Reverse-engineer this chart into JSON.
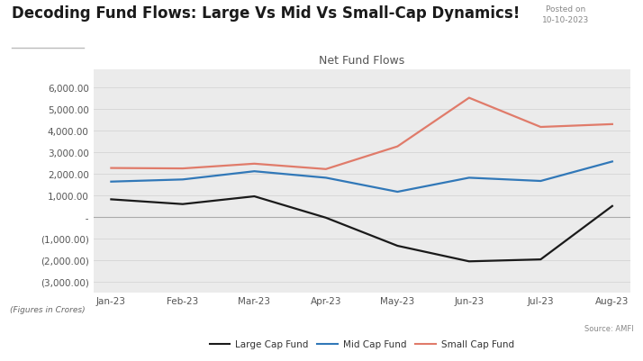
{
  "title": "Decoding Fund Flows: Large Vs Mid Vs Small-Cap Dynamics!",
  "posted_on": "Posted on\n10-10-2023",
  "chart_title": "Net Fund Flows",
  "source": "Source: AMFI",
  "footnote": "(Figures in Crores)",
  "months": [
    "Jan-23",
    "Feb-23",
    "Mar-23",
    "Apr-23",
    "May-23",
    "Jun-23",
    "Jul-23",
    "Aug-23"
  ],
  "large_cap_values": [
    800,
    580,
    940,
    -50,
    -1350,
    -2070,
    -1980,
    490
  ],
  "mid_cap_values": [
    1620,
    1720,
    2100,
    1800,
    1150,
    1800,
    1650,
    2550
  ],
  "small_cap_values": [
    2250,
    2230,
    2450,
    2200,
    3250,
    5500,
    4150,
    4280
  ],
  "large_cap_color": "#1a1a1a",
  "mid_cap_color": "#3178b8",
  "small_cap_color": "#e07b6a",
  "bg_color": "#ebebeb",
  "outer_bg": "#ffffff",
  "ylim": [
    -3500,
    6800
  ],
  "yticks": [
    -3000,
    -2000,
    -1000,
    0,
    1000,
    2000,
    3000,
    4000,
    5000,
    6000
  ],
  "footer_color": "#f09070",
  "title_fontsize": 12,
  "axis_label_fontsize": 7.5,
  "legend_fontsize": 7.5,
  "chart_title_fontsize": 9
}
